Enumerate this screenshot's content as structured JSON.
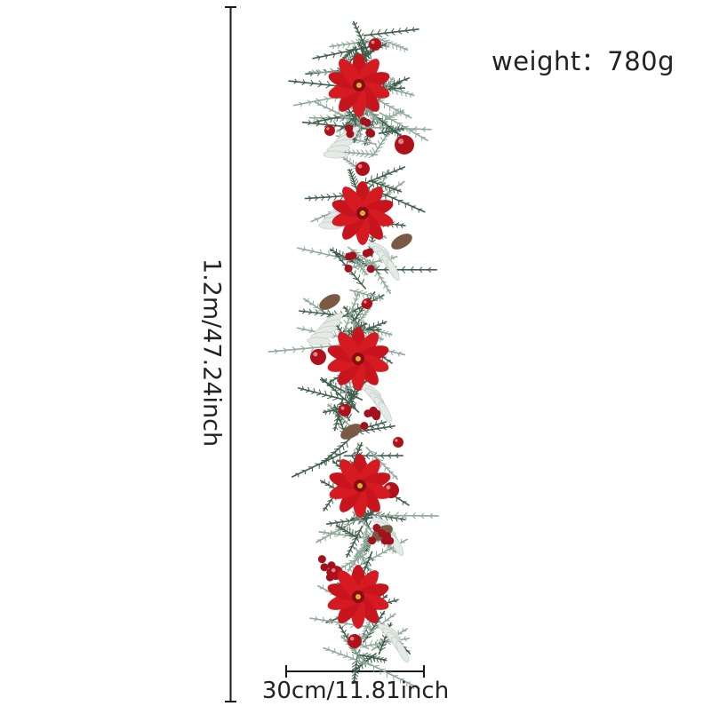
{
  "product": {
    "weight_text": "weight：780g",
    "height_text": "1.2m/47.24inch",
    "width_text": "30cm/11.81inch"
  },
  "colors": {
    "background": "#ffffff",
    "measure_line": "#1a1a1a",
    "needle_dark": "#3f5e4c",
    "needle_light": "#8ea89a",
    "frost": "#e4ebe7",
    "poinsettia": "#c8141c",
    "ornament": "#b0101a",
    "berry": "#a3121c",
    "pinecone": "#7a5a44"
  },
  "icons": [
    "ruler-vertical-icon",
    "ruler-horizontal-icon"
  ]
}
